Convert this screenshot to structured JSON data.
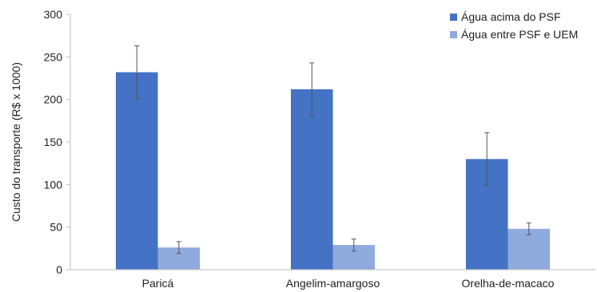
{
  "chart_data": {
    "type": "bar",
    "categories": [
      "Paricá",
      "Angelim-amargoso",
      "Orelha-de-macaco"
    ],
    "series": [
      {
        "name": "Água acima do PSF",
        "color": "#4472c4",
        "values": [
          232,
          212,
          130
        ],
        "errors": [
          31,
          31,
          31
        ]
      },
      {
        "name": "Água entre PSF e UEM",
        "color": "#8faadc",
        "values": [
          26,
          29,
          48
        ],
        "errors": [
          7,
          7,
          7
        ]
      }
    ],
    "xlabel": "",
    "ylabel": "Custo do transporte (R$ x 1000)",
    "ylim": [
      0,
      300
    ],
    "yticks": [
      0,
      50,
      100,
      150,
      200,
      250,
      300
    ],
    "grid": false,
    "legend": "top-right"
  }
}
